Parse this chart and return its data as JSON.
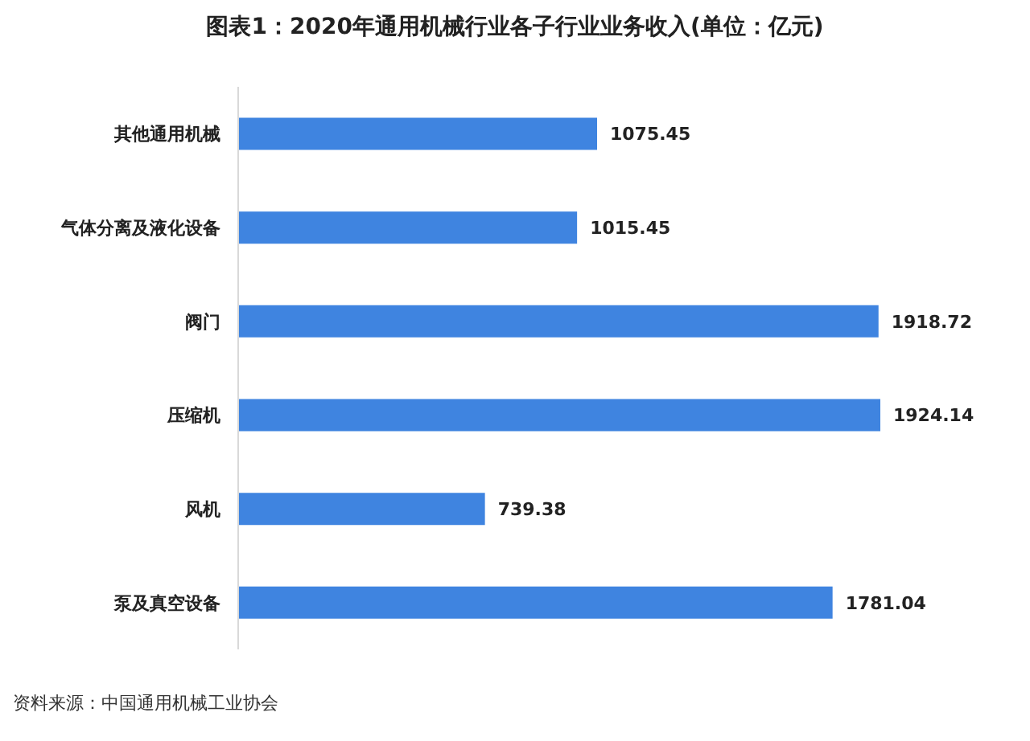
{
  "chart_data": {
    "type": "bar",
    "orientation": "horizontal",
    "title": "图表1：2020年通用机械行业各子行业业务收入(单位：亿元)",
    "categories": [
      "其他通用机械",
      "气体分离及液化设备",
      "阀门",
      "压缩机",
      "风机",
      "泵及真空设备"
    ],
    "values": [
      1075.45,
      1015.45,
      1918.72,
      1924.14,
      739.38,
      1781.04
    ],
    "color": "#3f84e0",
    "data_labels": true,
    "annotations": [
      "资料来源：中国通用机械工业协会"
    ]
  }
}
